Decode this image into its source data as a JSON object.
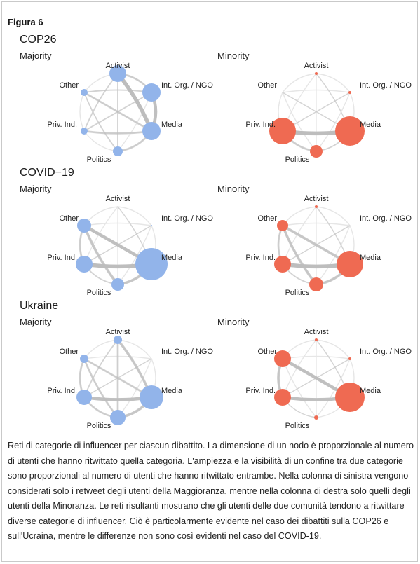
{
  "figure_label": "Figura 6",
  "column_labels": {
    "majority": "Majority",
    "minority": "Minority"
  },
  "colors": {
    "majority": "#92b4ea",
    "minority": "#ef6a52",
    "edge": "#bdbdbd",
    "edge_faint": "#e6e6e6"
  },
  "categories": [
    "Activist",
    "Int. Org. / NGO",
    "Media",
    "Politics",
    "Priv. Ind.",
    "Other"
  ],
  "debates": [
    {
      "title": "COP26",
      "majority": {
        "node_size": {
          "Activist": 12,
          "Int. Org. / NGO": 13,
          "Media": 13,
          "Politics": 7,
          "Priv. Ind.": 5,
          "Other": 5
        },
        "edges": [
          {
            "from": "Activist",
            "to": "Media",
            "weight": 5
          },
          {
            "from": "Int. Org. / NGO",
            "to": "Media",
            "weight": 4
          },
          {
            "from": "Activist",
            "to": "Int. Org. / NGO",
            "weight": 2
          },
          {
            "from": "Priv. Ind.",
            "to": "Media",
            "weight": 2
          },
          {
            "from": "Other",
            "to": "Media",
            "weight": 2
          },
          {
            "from": "Politics",
            "to": "Media",
            "weight": 2
          },
          {
            "from": "Other",
            "to": "Politics",
            "weight": 1
          },
          {
            "from": "Priv. Ind.",
            "to": "Int. Org. / NGO",
            "weight": 1
          },
          {
            "from": "Activist",
            "to": "Politics",
            "weight": 1
          },
          {
            "from": "Other",
            "to": "Int. Org. / NGO",
            "weight": 1
          },
          {
            "from": "Priv. Ind.",
            "to": "Activist",
            "weight": 1
          }
        ]
      },
      "minority": {
        "node_size": {
          "Activist": 2,
          "Int. Org. / NGO": 2,
          "Media": 21,
          "Politics": 9,
          "Priv. Ind.": 19,
          "Other": 0
        },
        "edges": [
          {
            "from": "Priv. Ind.",
            "to": "Media",
            "weight": 5
          },
          {
            "from": "Priv. Ind.",
            "to": "Politics",
            "weight": 2
          },
          {
            "from": "Politics",
            "to": "Media",
            "weight": 1
          },
          {
            "from": "Activist",
            "to": "Media",
            "weight": 0.5
          },
          {
            "from": "Other",
            "to": "Media",
            "weight": 0.5
          },
          {
            "from": "Priv. Ind.",
            "to": "Int. Org. / NGO",
            "weight": 0.5
          }
        ]
      }
    },
    {
      "title": "COVID−19",
      "majority": {
        "node_size": {
          "Activist": 0,
          "Int. Org. / NGO": 1,
          "Media": 23,
          "Politics": 9,
          "Priv. Ind.": 12,
          "Other": 10
        },
        "edges": [
          {
            "from": "Priv. Ind.",
            "to": "Media",
            "weight": 5
          },
          {
            "from": "Other",
            "to": "Media",
            "weight": 4
          },
          {
            "from": "Politics",
            "to": "Media",
            "weight": 3
          },
          {
            "from": "Other",
            "to": "Politics",
            "weight": 3
          },
          {
            "from": "Other",
            "to": "Priv. Ind.",
            "weight": 2
          },
          {
            "from": "Priv. Ind.",
            "to": "Politics",
            "weight": 1
          },
          {
            "from": "Activist",
            "to": "Media",
            "weight": 0.5
          },
          {
            "from": "Int. Org. / NGO",
            "to": "Priv. Ind.",
            "weight": 0.5
          }
        ]
      },
      "minority": {
        "node_size": {
          "Activist": 2,
          "Int. Org. / NGO": 0,
          "Media": 19,
          "Politics": 10,
          "Priv. Ind.": 12,
          "Other": 8
        },
        "edges": [
          {
            "from": "Priv. Ind.",
            "to": "Media",
            "weight": 5
          },
          {
            "from": "Other",
            "to": "Media",
            "weight": 3
          },
          {
            "from": "Politics",
            "to": "Media",
            "weight": 3
          },
          {
            "from": "Other",
            "to": "Politics",
            "weight": 3
          },
          {
            "from": "Other",
            "to": "Priv. Ind.",
            "weight": 2
          },
          {
            "from": "Priv. Ind.",
            "to": "Politics",
            "weight": 1
          },
          {
            "from": "Activist",
            "to": "Media",
            "weight": 0.5
          },
          {
            "from": "Int. Org. / NGO",
            "to": "Priv. Ind.",
            "weight": 0.5
          }
        ]
      }
    },
    {
      "title": "Ukraine",
      "majority": {
        "node_size": {
          "Activist": 6,
          "Int. Org. / NGO": 0,
          "Media": 17,
          "Politics": 11,
          "Priv. Ind.": 11,
          "Other": 6
        },
        "edges": [
          {
            "from": "Priv. Ind.",
            "to": "Media",
            "weight": 4
          },
          {
            "from": "Activist",
            "to": "Media",
            "weight": 3
          },
          {
            "from": "Politics",
            "to": "Media",
            "weight": 3
          },
          {
            "from": "Other",
            "to": "Media",
            "weight": 2
          },
          {
            "from": "Other",
            "to": "Politics",
            "weight": 2
          },
          {
            "from": "Activist",
            "to": "Politics",
            "weight": 2
          },
          {
            "from": "Priv. Ind.",
            "to": "Politics",
            "weight": 2
          },
          {
            "from": "Other",
            "to": "Priv. Ind.",
            "weight": 2
          },
          {
            "from": "Activist",
            "to": "Priv. Ind.",
            "weight": 1
          },
          {
            "from": "Int. Org. / NGO",
            "to": "Priv. Ind.",
            "weight": 0.5
          }
        ]
      },
      "minority": {
        "node_size": {
          "Activist": 2,
          "Int. Org. / NGO": 2,
          "Media": 21,
          "Politics": 3,
          "Priv. Ind.": 12,
          "Other": 12
        },
        "edges": [
          {
            "from": "Other",
            "to": "Media",
            "weight": 4
          },
          {
            "from": "Priv. Ind.",
            "to": "Media",
            "weight": 4
          },
          {
            "from": "Other",
            "to": "Priv. Ind.",
            "weight": 3
          },
          {
            "from": "Activist",
            "to": "Media",
            "weight": 0.5
          },
          {
            "from": "Priv. Ind.",
            "to": "Politics",
            "weight": 0.5
          },
          {
            "from": "Int. Org. / NGO",
            "to": "Priv. Ind.",
            "weight": 0.5
          }
        ]
      }
    }
  ],
  "caption": "Reti di categorie di influencer per ciascun dibattito. La dimensione di un nodo è proporzionale al numero di utenti che hanno ritwittato quella categoria. L'ampiezza e la visibilità di un confine tra due categorie sono proporzionali al numero di utenti che hanno ritwittato entrambe. Nella colonna di sinistra vengono considerati solo i retweet degli utenti della Maggioranza, mentre nella colonna di destra solo quelli degli utenti della Minoranza. Le reti risultanti mostrano che gli utenti delle due comunità tendono a ritwittare diverse categorie di influencer. Ciò è particolarmente evidente nel caso dei dibattiti sulla COP26 e sull'Ucraina, mentre le differenze non sono così evidenti nel caso del COVID-19."
}
